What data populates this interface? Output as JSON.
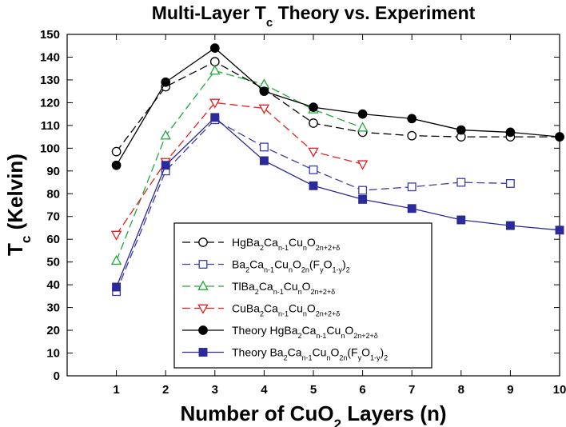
{
  "chart_data": {
    "type": "line",
    "title": {
      "main": "Multi-Layer T",
      "sub": "c",
      "tail": " Theory vs. Experiment"
    },
    "xlabel": {
      "main": "Number of CuO",
      "sub": "2",
      "tail": " Layers (n)"
    },
    "ylabel": {
      "main": "T",
      "sub": "c",
      "tail": " (Kelvin)"
    },
    "xlim": [
      0,
      10
    ],
    "ylim": [
      0,
      150
    ],
    "xticks": [
      "1",
      "2",
      "3",
      "4",
      "5",
      "6",
      "7",
      "8",
      "9",
      "10"
    ],
    "yticks": [
      "0",
      "10",
      "20",
      "30",
      "40",
      "50",
      "60",
      "70",
      "80",
      "90",
      "100",
      "110",
      "120",
      "130",
      "140",
      "150"
    ],
    "grid": false,
    "legend_position": "lower-center",
    "series": [
      {
        "key": "hg_exp",
        "legend": [
          [
            "HgBa",
            ""
          ],
          [
            "2",
            "sub"
          ],
          [
            "Ca",
            ""
          ],
          [
            "n-1",
            "sub"
          ],
          [
            "Cu",
            ""
          ],
          [
            "n",
            "sub"
          ],
          [
            "O",
            ""
          ],
          [
            "2n+2+δ",
            "sub"
          ]
        ],
        "color": "#000000",
        "marker": "circle-open",
        "dash": "10,5",
        "x": [
          1,
          2,
          3,
          4,
          5,
          6,
          7,
          8,
          9,
          10
        ],
        "y": [
          98.5,
          127,
          138,
          126,
          111,
          107,
          105.5,
          105,
          105,
          105
        ]
      },
      {
        "key": "ba_f_exp",
        "legend": [
          [
            "Ba",
            ""
          ],
          [
            "2",
            "sub"
          ],
          [
            "Ca",
            ""
          ],
          [
            "n-1",
            "sub"
          ],
          [
            "Cu",
            ""
          ],
          [
            "n",
            "sub"
          ],
          [
            "O",
            ""
          ],
          [
            "2n",
            "sub"
          ],
          [
            "(F",
            ""
          ],
          [
            "y",
            "sub"
          ],
          [
            "O",
            ""
          ],
          [
            "1-y",
            "sub"
          ],
          [
            ")",
            ""
          ],
          [
            "2",
            "sub"
          ]
        ],
        "color": "#3d3d9c",
        "marker": "square-open",
        "dash": "10,5",
        "x": [
          1,
          2,
          3,
          4,
          5,
          6,
          7,
          8,
          9
        ],
        "y": [
          37,
          90,
          112.5,
          100.5,
          90.5,
          81.5,
          83,
          85,
          84.5
        ]
      },
      {
        "key": "tl_exp",
        "legend": [
          [
            "TlBa",
            ""
          ],
          [
            "2",
            "sub"
          ],
          [
            "Ca",
            ""
          ],
          [
            "n-1",
            "sub"
          ],
          [
            "Cu",
            ""
          ],
          [
            "n",
            "sub"
          ],
          [
            "O",
            ""
          ],
          [
            "2n+2+δ",
            "sub"
          ]
        ],
        "color": "#1fa83a",
        "marker": "triangle-up-open",
        "dash": "10,5",
        "x": [
          1,
          2,
          3,
          4,
          5,
          6
        ],
        "y": [
          50.5,
          105.5,
          134,
          128,
          117,
          109
        ]
      },
      {
        "key": "cu_exp",
        "legend": [
          [
            "CuBa",
            ""
          ],
          [
            "2",
            "sub"
          ],
          [
            "Ca",
            ""
          ],
          [
            "n-1",
            "sub"
          ],
          [
            "Cu",
            ""
          ],
          [
            "n",
            "sub"
          ],
          [
            "O",
            ""
          ],
          [
            "2n+2+δ",
            "sub"
          ]
        ],
        "color": "#e02020",
        "marker": "triangle-down-open",
        "dash": "10,5",
        "x": [
          1,
          2,
          3,
          4,
          5,
          6
        ],
        "y": [
          62,
          94,
          120,
          117.5,
          98.5,
          93
        ]
      },
      {
        "key": "hg_theory",
        "legend": [
          [
            "Theory HgBa",
            ""
          ],
          [
            "2",
            "sub"
          ],
          [
            "Ca",
            ""
          ],
          [
            "n-1",
            "sub"
          ],
          [
            "Cu",
            ""
          ],
          [
            "n",
            "sub"
          ],
          [
            "O",
            ""
          ],
          [
            "2n+2+δ",
            "sub"
          ]
        ],
        "color": "#000000",
        "marker": "circle-filled",
        "dash": "",
        "x": [
          1,
          2,
          3,
          4,
          5,
          6,
          7,
          8,
          9,
          10
        ],
        "y": [
          92.5,
          129,
          144,
          125,
          118,
          115,
          113,
          108,
          107,
          105
        ]
      },
      {
        "key": "ba_f_theory",
        "legend": [
          [
            "Theory Ba",
            ""
          ],
          [
            "2",
            "sub"
          ],
          [
            "Ca",
            ""
          ],
          [
            "n-1",
            "sub"
          ],
          [
            "Cu",
            ""
          ],
          [
            "n",
            "sub"
          ],
          [
            "O",
            ""
          ],
          [
            "2n",
            "sub"
          ],
          [
            "(F",
            ""
          ],
          [
            "y",
            "sub"
          ],
          [
            "O",
            ""
          ],
          [
            "1-y",
            "sub"
          ],
          [
            ")",
            ""
          ],
          [
            "2",
            "sub"
          ]
        ],
        "color": "#2a2a9a",
        "marker": "square-filled",
        "dash": "",
        "x": [
          1,
          2,
          3,
          4,
          5,
          6,
          7,
          8,
          9,
          10
        ],
        "y": [
          39,
          92.5,
          113.5,
          94.5,
          83.5,
          77.5,
          73.5,
          68.5,
          66,
          64
        ]
      }
    ]
  }
}
